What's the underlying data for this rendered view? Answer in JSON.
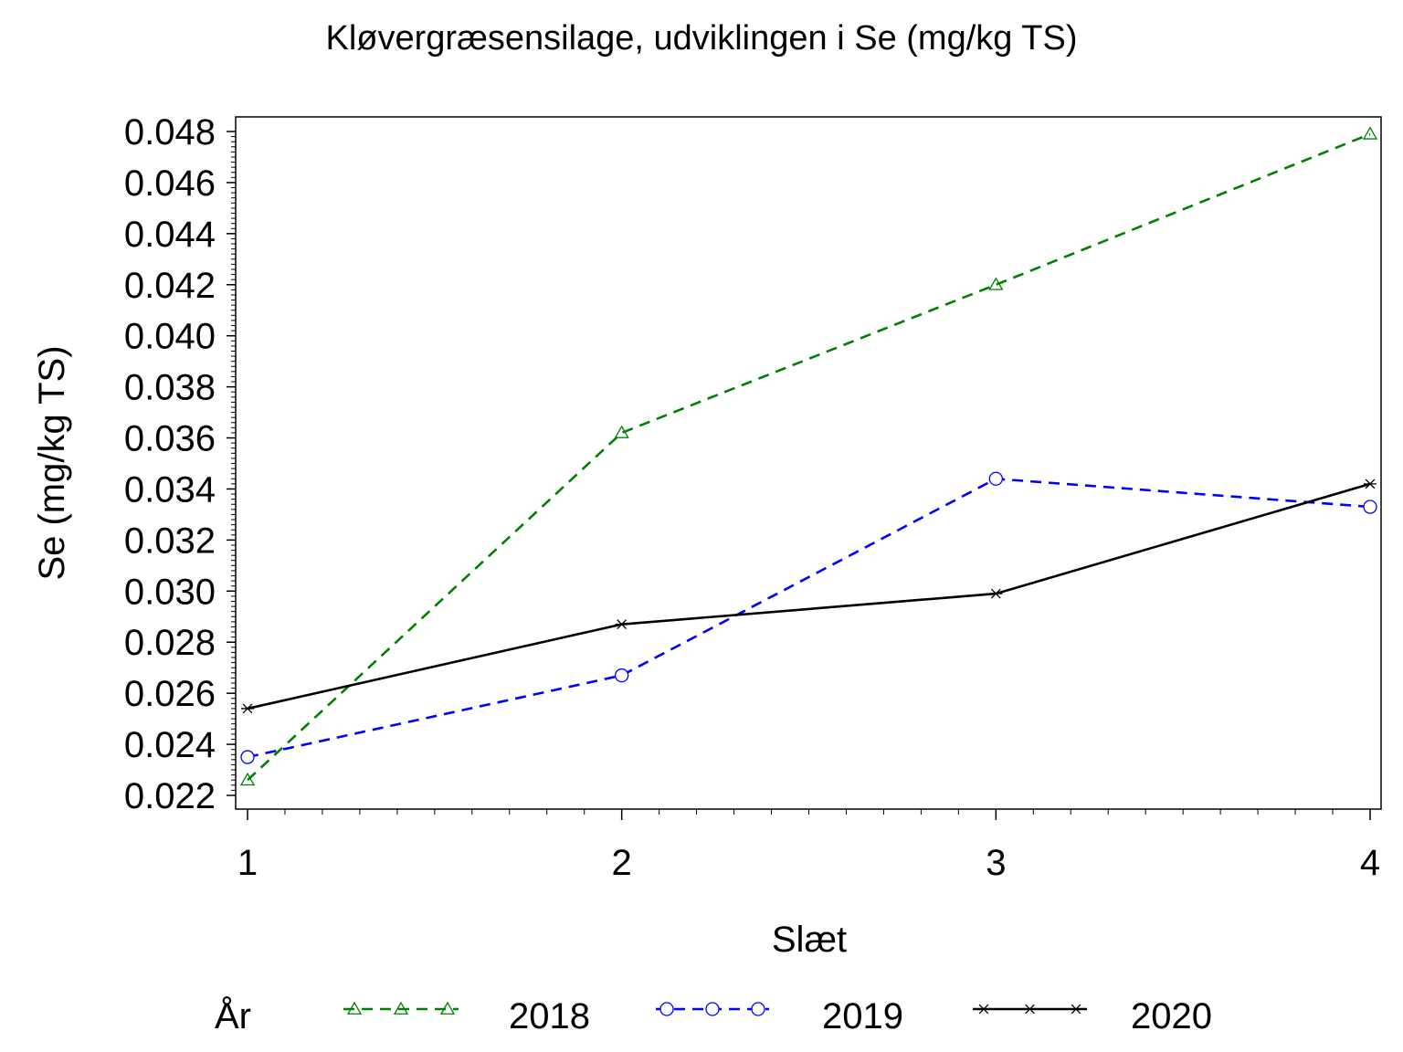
{
  "chart_data": {
    "type": "line",
    "title": "Kløvergræsensilage, udviklingen i Se (mg/kg TS)",
    "xlabel": "Slæt",
    "ylabel": "Se (mg/kg TS)",
    "x": [
      1,
      2,
      3,
      4
    ],
    "x_ticks": [
      "1",
      "2",
      "3",
      "4"
    ],
    "xlim": [
      1,
      4
    ],
    "ylim": [
      0.022,
      0.048
    ],
    "y_ticks": [
      "0.022",
      "0.024",
      "0.026",
      "0.028",
      "0.030",
      "0.032",
      "0.034",
      "0.036",
      "0.038",
      "0.040",
      "0.042",
      "0.044",
      "0.046",
      "0.048"
    ],
    "grid": false,
    "legend": {
      "title": "År",
      "position": "bottom"
    },
    "series": [
      {
        "name": "2018",
        "values": [
          0.0226,
          0.0362,
          0.042,
          0.0479
        ],
        "color": "#008000",
        "line_style": "dashed",
        "marker": "triangle"
      },
      {
        "name": "2019",
        "values": [
          0.0235,
          0.0267,
          0.0344,
          0.0333
        ],
        "color": "#0000ff",
        "line_style": "dashed",
        "marker": "circle"
      },
      {
        "name": "2020",
        "values": [
          0.0254,
          0.0287,
          0.0299,
          0.0342
        ],
        "color": "#000000",
        "line_style": "solid",
        "marker": "star"
      }
    ]
  }
}
